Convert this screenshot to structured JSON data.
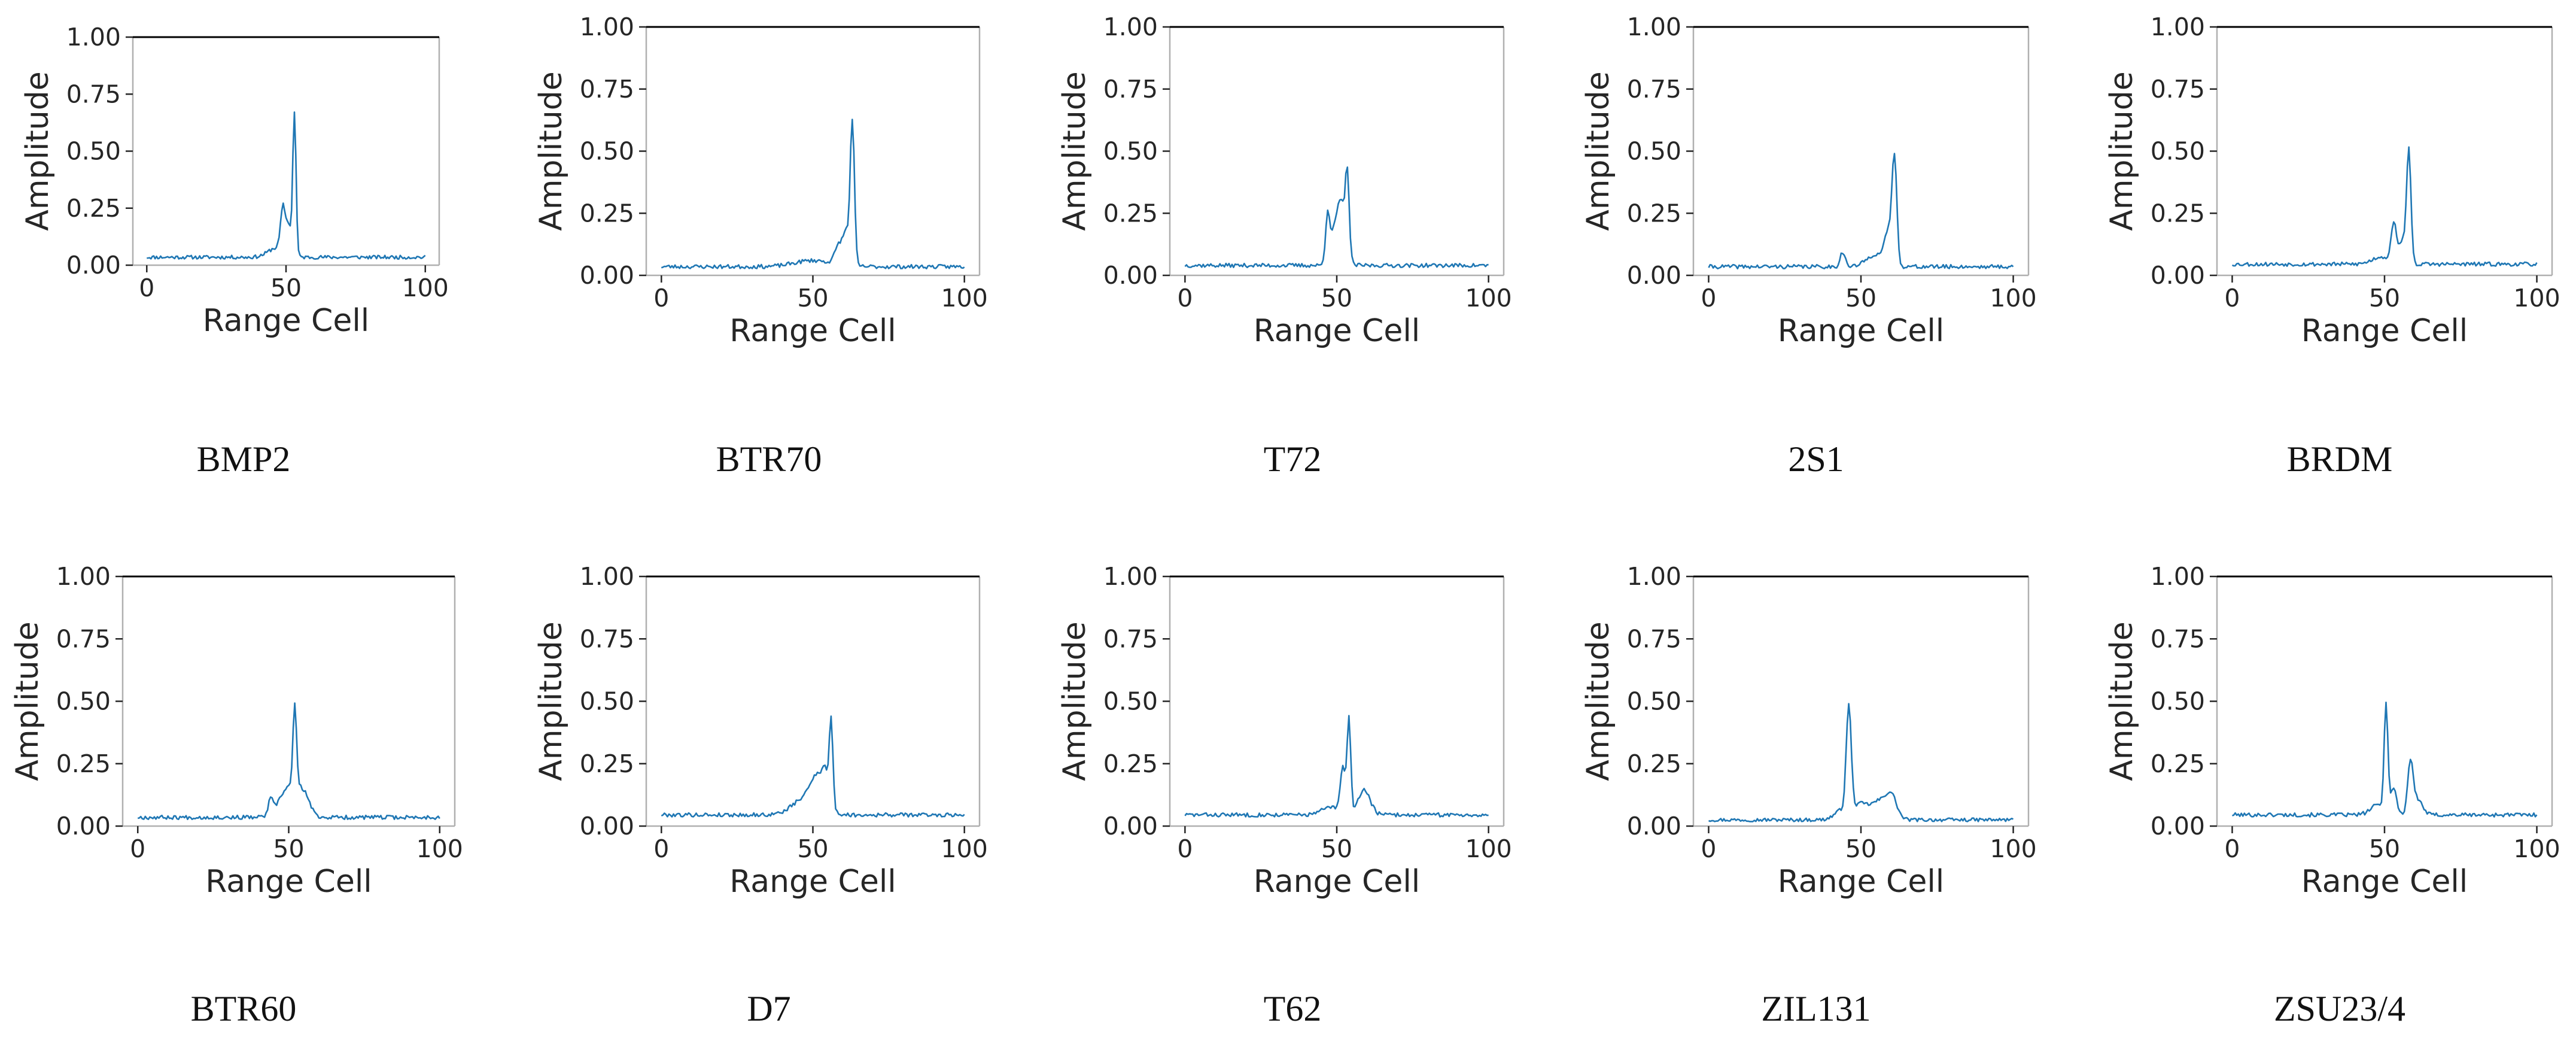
{
  "colors": {
    "line": "#1f77b4",
    "frame": "#b0b0b0",
    "top_spine": "#000000",
    "text": "#262626"
  },
  "chart_data": [
    {
      "type": "line",
      "caption": "BMP2",
      "xlabel": "Range Cell",
      "ylabel": "Amplitude",
      "xlim": [
        0,
        100
      ],
      "ylim": [
        0,
        1
      ],
      "xticks": [
        0,
        50,
        100
      ],
      "yticks": [
        0,
        0.25,
        0.5,
        0.75,
        1
      ],
      "xtick_labels": [
        "0",
        "50",
        "100"
      ],
      "ytick_labels": [
        "0.00",
        "0.25",
        "0.50",
        "0.75",
        "1.00"
      ],
      "baseline": 0.035,
      "noise": 0.008,
      "seed": 11,
      "peaks": [
        {
          "x": 46.5,
          "amp": 0.04,
          "width": 3.0
        },
        {
          "x": 49,
          "amp": 0.2,
          "width": 0.9
        },
        {
          "x": 51,
          "amp": 0.12,
          "width": 0.7
        },
        {
          "x": 53,
          "amp": 0.63,
          "width": 0.6
        }
      ]
    },
    {
      "type": "line",
      "caption": "BTR70",
      "xlabel": "Range Cell",
      "ylabel": "Amplitude",
      "xlim": [
        0,
        100
      ],
      "ylim": [
        0,
        1
      ],
      "xticks": [
        0,
        50,
        100
      ],
      "yticks": [
        0,
        0.25,
        0.5,
        0.75,
        1
      ],
      "xtick_labels": [
        "0",
        "50",
        "100"
      ],
      "ytick_labels": [
        "0.00",
        "0.25",
        "0.50",
        "0.75",
        "1.00"
      ],
      "baseline": 0.035,
      "noise": 0.008,
      "seed": 23,
      "peaks": [
        {
          "x": 50,
          "amp": 0.025,
          "width": 6
        },
        {
          "x": 59,
          "amp": 0.09,
          "width": 1.5
        },
        {
          "x": 61,
          "amp": 0.1,
          "width": 0.8
        },
        {
          "x": 63,
          "amp": 0.59,
          "width": 0.7
        }
      ]
    },
    {
      "type": "line",
      "caption": "T72",
      "xlabel": "Range Cell",
      "ylabel": "Amplitude",
      "xlim": [
        0,
        100
      ],
      "ylim": [
        0,
        1
      ],
      "xticks": [
        0,
        50,
        100
      ],
      "yticks": [
        0,
        0.25,
        0.5,
        0.75,
        1
      ],
      "xtick_labels": [
        "0",
        "50",
        "100"
      ],
      "ytick_labels": [
        "0.00",
        "0.25",
        "0.50",
        "0.75",
        "1.00"
      ],
      "baseline": 0.04,
      "noise": 0.008,
      "seed": 37,
      "peaks": [
        {
          "x": 47,
          "amp": 0.2,
          "width": 0.7
        },
        {
          "x": 49,
          "amp": 0.09,
          "width": 1.2
        },
        {
          "x": 51.5,
          "amp": 0.25,
          "width": 1.5
        },
        {
          "x": 53.5,
          "amp": 0.3,
          "width": 0.6
        }
      ]
    },
    {
      "type": "line",
      "caption": "2S1",
      "xlabel": "Range Cell",
      "ylabel": "Amplitude",
      "xlim": [
        0,
        100
      ],
      "ylim": [
        0,
        1
      ],
      "xticks": [
        0,
        50,
        100
      ],
      "yticks": [
        0,
        0.25,
        0.5,
        0.75,
        1
      ],
      "xtick_labels": [
        "0",
        "50",
        "100"
      ],
      "ytick_labels": [
        "0.00",
        "0.25",
        "0.50",
        "0.75",
        "1.00"
      ],
      "baseline": 0.035,
      "noise": 0.008,
      "seed": 41,
      "peaks": [
        {
          "x": 44,
          "amp": 0.06,
          "width": 0.8
        },
        {
          "x": 55,
          "amp": 0.05,
          "width": 3
        },
        {
          "x": 59,
          "amp": 0.12,
          "width": 1.2
        },
        {
          "x": 61,
          "amp": 0.42,
          "width": 0.8
        }
      ]
    },
    {
      "type": "line",
      "caption": "BRDM",
      "xlabel": "Range Cell",
      "ylabel": "Amplitude",
      "xlim": [
        0,
        100
      ],
      "ylim": [
        0,
        1
      ],
      "xticks": [
        0,
        50,
        100
      ],
      "yticks": [
        0,
        0.25,
        0.5,
        0.75,
        1
      ],
      "xtick_labels": [
        "0",
        "50",
        "100"
      ],
      "ytick_labels": [
        "0.00",
        "0.25",
        "0.50",
        "0.75",
        "1.00"
      ],
      "baseline": 0.045,
      "noise": 0.008,
      "seed": 53,
      "peaks": [
        {
          "x": 49,
          "amp": 0.03,
          "width": 3
        },
        {
          "x": 53,
          "amp": 0.16,
          "width": 0.8
        },
        {
          "x": 56,
          "amp": 0.1,
          "width": 1.2
        },
        {
          "x": 58,
          "amp": 0.44,
          "width": 0.7
        }
      ]
    },
    {
      "type": "line",
      "caption": "BTR60",
      "xlabel": "Range Cell",
      "ylabel": "Amplitude",
      "xlim": [
        0,
        100
      ],
      "ylim": [
        0,
        1
      ],
      "xticks": [
        0,
        50,
        100
      ],
      "yticks": [
        0,
        0.25,
        0.5,
        0.75,
        1
      ],
      "xtick_labels": [
        "0",
        "50",
        "100"
      ],
      "ytick_labels": [
        "0.00",
        "0.25",
        "0.50",
        "0.75",
        "1.00"
      ],
      "baseline": 0.035,
      "noise": 0.008,
      "seed": 67,
      "peaks": [
        {
          "x": 44,
          "amp": 0.06,
          "width": 0.8
        },
        {
          "x": 50,
          "amp": 0.12,
          "width": 3
        },
        {
          "x": 52,
          "amp": 0.33,
          "width": 0.6
        },
        {
          "x": 55,
          "amp": 0.08,
          "width": 2
        }
      ]
    },
    {
      "type": "line",
      "caption": "D7",
      "xlabel": "Range Cell",
      "ylabel": "Amplitude",
      "xlim": [
        0,
        100
      ],
      "ylim": [
        0,
        1
      ],
      "xticks": [
        0,
        50,
        100
      ],
      "yticks": [
        0,
        0.25,
        0.5,
        0.75,
        1
      ],
      "xtick_labels": [
        "0",
        "50",
        "100"
      ],
      "ytick_labels": [
        "0.00",
        "0.25",
        "0.50",
        "0.75",
        "1.00"
      ],
      "baseline": 0.045,
      "noise": 0.008,
      "seed": 79,
      "peaks": [
        {
          "x": 47,
          "amp": 0.06,
          "width": 4
        },
        {
          "x": 52,
          "amp": 0.14,
          "width": 2.5
        },
        {
          "x": 54,
          "amp": 0.08,
          "width": 0.8
        },
        {
          "x": 56,
          "amp": 0.35,
          "width": 0.6
        }
      ]
    },
    {
      "type": "line",
      "caption": "T62",
      "xlabel": "Range Cell",
      "ylabel": "Amplitude",
      "xlim": [
        0,
        100
      ],
      "ylim": [
        0,
        1
      ],
      "xticks": [
        0,
        50,
        100
      ],
      "yticks": [
        0,
        0.25,
        0.5,
        0.75,
        1
      ],
      "xtick_labels": [
        "0",
        "50",
        "100"
      ],
      "ytick_labels": [
        "0.00",
        "0.25",
        "0.50",
        "0.75",
        "1.00"
      ],
      "baseline": 0.045,
      "noise": 0.008,
      "seed": 83,
      "peaks": [
        {
          "x": 48,
          "amp": 0.03,
          "width": 3
        },
        {
          "x": 52,
          "amp": 0.18,
          "width": 0.8
        },
        {
          "x": 54,
          "amp": 0.38,
          "width": 0.6
        },
        {
          "x": 59,
          "amp": 0.1,
          "width": 2
        }
      ]
    },
    {
      "type": "line",
      "caption": "ZIL131",
      "xlabel": "Range Cell",
      "ylabel": "Amplitude",
      "xlim": [
        0,
        100
      ],
      "ylim": [
        0,
        1
      ],
      "xticks": [
        0,
        50,
        100
      ],
      "yticks": [
        0,
        0.25,
        0.5,
        0.75,
        1
      ],
      "xtick_labels": [
        "0",
        "50",
        "100"
      ],
      "ytick_labels": [
        "0.00",
        "0.25",
        "0.50",
        "0.75",
        "1.00"
      ],
      "baseline": 0.025,
      "noise": 0.007,
      "seed": 97,
      "peaks": [
        {
          "x": 44,
          "amp": 0.04,
          "width": 2.5
        },
        {
          "x": 46,
          "amp": 0.42,
          "width": 0.8
        },
        {
          "x": 50,
          "amp": 0.06,
          "width": 2.5
        },
        {
          "x": 56,
          "amp": 0.07,
          "width": 2.5
        },
        {
          "x": 60,
          "amp": 0.09,
          "width": 1.8
        }
      ]
    },
    {
      "type": "line",
      "caption": "ZSU23/4",
      "xlabel": "Range Cell",
      "ylabel": "Amplitude",
      "xlim": [
        0,
        100
      ],
      "ylim": [
        0,
        1
      ],
      "xticks": [
        0,
        50,
        100
      ],
      "yticks": [
        0,
        0.25,
        0.5,
        0.75,
        1
      ],
      "xtick_labels": [
        "0",
        "50",
        "100"
      ],
      "ytick_labels": [
        "0.00",
        "0.25",
        "0.50",
        "0.75",
        "1.00"
      ],
      "baseline": 0.045,
      "noise": 0.008,
      "seed": 101,
      "peaks": [
        {
          "x": 48,
          "amp": 0.04,
          "width": 2.5
        },
        {
          "x": 50.5,
          "amp": 0.43,
          "width": 0.6
        },
        {
          "x": 53,
          "amp": 0.1,
          "width": 1
        },
        {
          "x": 58.5,
          "amp": 0.21,
          "width": 0.9
        },
        {
          "x": 61,
          "amp": 0.06,
          "width": 1.5
        }
      ]
    }
  ]
}
